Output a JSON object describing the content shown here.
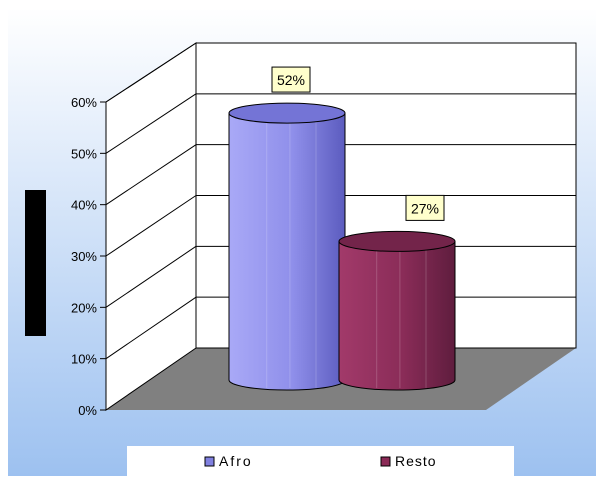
{
  "chart_data": {
    "type": "bar",
    "categories": [
      "Afro",
      "Resto"
    ],
    "values": [
      52,
      27
    ],
    "data_labels": [
      "52%",
      "27%"
    ],
    "legend": [
      "Afro",
      "Resto"
    ],
    "colors": {
      "Afro": "#8080e0",
      "Resto": "#8b2a56",
      "floor": "#808080"
    },
    "yticks": [
      "0%",
      "10%",
      "20%",
      "30%",
      "40%",
      "50%",
      "60%"
    ],
    "ylim": [
      0,
      60
    ],
    "title": "",
    "xlabel": "",
    "ylabel": "",
    "grid": true,
    "legend_position": "bottom"
  }
}
